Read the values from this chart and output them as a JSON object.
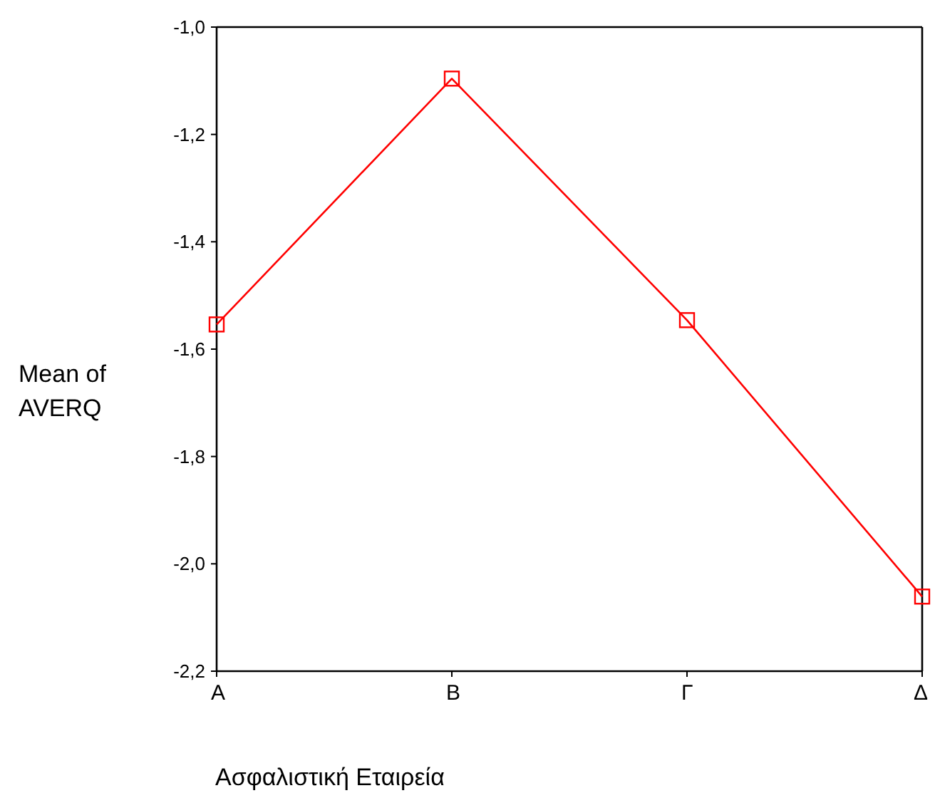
{
  "chart_data": {
    "type": "line",
    "xlabel": "Ασφαλιστική Εταιρεία",
    "ylabel": "Mean of\nAVERQ",
    "categories": [
      "Α",
      "Β",
      "Γ",
      "Δ"
    ],
    "series": [
      {
        "color": "#ff0000",
        "values": [
          -1.554,
          -1.096,
          -1.546,
          -2.061
        ]
      }
    ],
    "ylim": [
      -2.2,
      -1.0
    ],
    "yticks": [
      {
        "value": -2.2,
        "label": "-2,2"
      },
      {
        "value": -2.0,
        "label": "-2,0"
      },
      {
        "value": -1.8,
        "label": "-1,8"
      },
      {
        "value": -1.6,
        "label": "-1,6"
      },
      {
        "value": -1.4,
        "label": "-1,4"
      },
      {
        "value": -1.2,
        "label": "-1,2"
      },
      {
        "value": -1.0,
        "label": "-1,0"
      }
    ],
    "marker": "square",
    "line_style": "solid"
  }
}
